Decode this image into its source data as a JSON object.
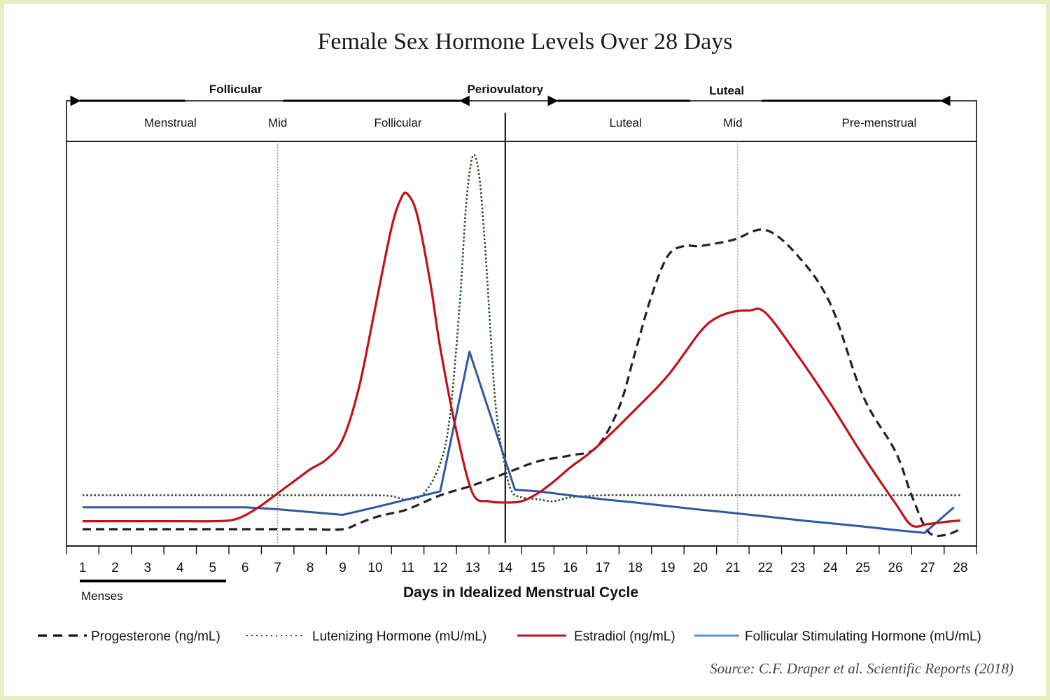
{
  "chart_data": {
    "type": "line",
    "title": "Female Sex Hormone Levels Over 28 Days",
    "xlabel": "Days in Idealized Menstrual Cycle",
    "ylabel": "",
    "x_ticks": [
      1,
      2,
      3,
      4,
      5,
      6,
      7,
      8,
      9,
      10,
      11,
      12,
      13,
      14,
      15,
      16,
      17,
      18,
      19,
      20,
      21,
      22,
      23,
      24,
      25,
      26,
      27,
      28
    ],
    "xlim": [
      0.5,
      28.5
    ],
    "ylim": [
      0,
      100
    ],
    "grid": false,
    "legend_position": "bottom",
    "phases_top": [
      {
        "label": "Follicular",
        "direction": "left-right",
        "from": 1,
        "to": 13
      },
      {
        "label": "Periovulatory",
        "direction": "none",
        "from": 13,
        "to": 15
      },
      {
        "label": "Luteal",
        "direction": "left-right",
        "from": 15.5,
        "to": 27.5
      }
    ],
    "subphases": [
      {
        "label": "Menstrual",
        "x": 3.7
      },
      {
        "label": "Mid",
        "x": 7
      },
      {
        "label": "Follicular",
        "x": 10.7
      },
      {
        "label": "Luteal",
        "x": 17.7
      },
      {
        "label": "Mid",
        "x": 21
      },
      {
        "label": "Pre-menstrual",
        "x": 25.5
      }
    ],
    "reference_lines": [
      {
        "x": 7,
        "style": "dotted-blue"
      },
      {
        "x": 14,
        "style": "solid-black"
      },
      {
        "x": 21.15,
        "style": "dotted-blue"
      }
    ],
    "menses": {
      "label": "Menses",
      "from": 1,
      "to": 5.5
    },
    "series": [
      {
        "name": "Progesterone (ng/mL)",
        "style": "dashed",
        "color": "#1f1f2e",
        "x": [
          1,
          2,
          3,
          4,
          5,
          6,
          7,
          8,
          9,
          9.5,
          10,
          10.5,
          11,
          12,
          13,
          14,
          15,
          16,
          16.8,
          17.5,
          18,
          18.5,
          19,
          19.5,
          20,
          21,
          22,
          23,
          24,
          25,
          26,
          26.5,
          27,
          27.5,
          28
        ],
        "y": [
          3.5,
          3.5,
          3.5,
          3.5,
          3.5,
          3.5,
          3.5,
          3.5,
          3.5,
          5,
          6.5,
          7.5,
          8.5,
          12,
          14.5,
          17.5,
          20.5,
          22,
          24,
          34,
          48,
          62,
          72,
          74.5,
          74.5,
          76,
          78.5,
          72,
          60,
          37,
          23,
          12,
          3,
          2,
          3.5
        ]
      },
      {
        "name": "Lutenizing Hormone (mU/mL)",
        "style": "dotted",
        "color": "#1e4a1e",
        "x": [
          1,
          2,
          3,
          4,
          5,
          6,
          7,
          8,
          9,
          10,
          10.5,
          11,
          11.5,
          12,
          12.3,
          12.6,
          12.8,
          13,
          13.2,
          13.4,
          13.7,
          14,
          14.2,
          14.5,
          15,
          15.5,
          16,
          17,
          18,
          19,
          20,
          21,
          22,
          23,
          24,
          25,
          26,
          27,
          28
        ],
        "y": [
          12,
          12,
          12,
          12,
          12,
          12,
          12,
          12,
          12,
          12,
          11.8,
          11,
          12.5,
          20,
          32,
          60,
          85,
          97,
          92,
          72,
          35,
          19,
          13,
          11.5,
          11,
          10.5,
          11.5,
          12,
          12,
          12,
          12,
          12,
          12,
          12,
          12,
          12,
          12,
          12,
          12
        ]
      },
      {
        "name": "Estradiol (ng/mL)",
        "style": "solid",
        "color": "#c0111a",
        "x": [
          1,
          2,
          3,
          4,
          5,
          5.6,
          6,
          6.5,
          7,
          7.5,
          8,
          8.5,
          9,
          9.5,
          10,
          10.5,
          10.8,
          11,
          11.3,
          11.7,
          12,
          12.5,
          13,
          13.5,
          14,
          14.5,
          15,
          15.5,
          16,
          16.5,
          17,
          18,
          19,
          20,
          20.5,
          21,
          21.5,
          22,
          23,
          24,
          25,
          26,
          26.5,
          27,
          27.5,
          28
        ],
        "y": [
          5.5,
          5.5,
          5.5,
          5.5,
          5.5,
          5.8,
          7,
          9.5,
          12.5,
          15.5,
          18.5,
          21,
          26,
          39,
          59,
          79,
          86.5,
          87.5,
          82,
          65,
          49,
          28,
          12.5,
          10.5,
          10.2,
          10.5,
          12.5,
          15.5,
          19,
          22,
          25.5,
          33.5,
          42,
          53,
          56.5,
          58,
          58.3,
          57.8,
          47,
          35,
          22,
          10,
          4.5,
          4.8,
          5.3,
          5.7
        ]
      },
      {
        "name": "Follicular Stimulating Hormone (mU/mL)",
        "style": "solid",
        "color": "#2e57a0",
        "x": [
          1,
          2,
          3,
          4,
          5,
          6,
          7,
          8,
          9,
          10,
          11,
          12,
          12.9,
          14.3,
          15,
          16,
          17,
          18,
          19,
          20,
          21,
          22,
          23,
          24,
          25,
          26,
          26.9,
          27.8
        ],
        "y": [
          9,
          9,
          9,
          9,
          9,
          9,
          8.5,
          7.8,
          7.1,
          9,
          11,
          13,
          48,
          13.4,
          13,
          12,
          11,
          10.2,
          9.3,
          8.4,
          7.6,
          6.7,
          5.8,
          5,
          4.2,
          3.3,
          2.6,
          9
        ]
      }
    ],
    "source": "Source: C.F. Draper et al. Scientific Reports (2018)"
  }
}
